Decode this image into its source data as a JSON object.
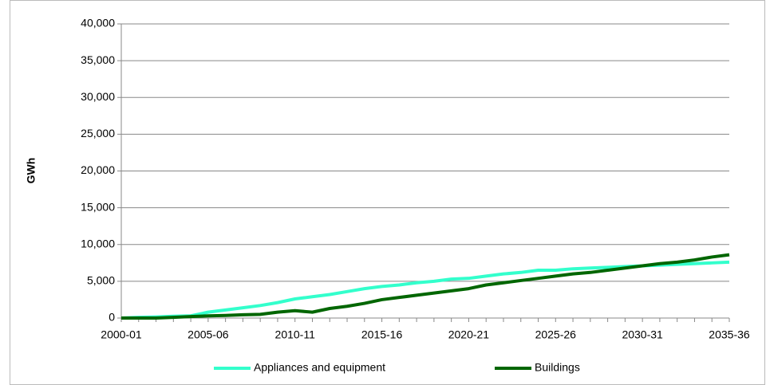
{
  "chart_data": {
    "type": "line",
    "y_label": "GWh",
    "categories": [
      "2000-01",
      null,
      null,
      null,
      null,
      "2005-06",
      null,
      null,
      null,
      null,
      "2010-11",
      null,
      null,
      null,
      null,
      "2015-16",
      null,
      null,
      null,
      null,
      "2020-21",
      null,
      null,
      null,
      null,
      "2025-26",
      null,
      null,
      null,
      null,
      "2030-31",
      null,
      null,
      null,
      null,
      "2035-36"
    ],
    "series": [
      {
        "name": "Appliances and equipment",
        "color": "#33ffcc",
        "values": [
          0,
          100,
          150,
          250,
          300,
          800,
          1100,
          1400,
          1700,
          2100,
          2600,
          2900,
          3200,
          3600,
          4000,
          4300,
          4500,
          4800,
          5000,
          5300,
          5400,
          5700,
          6000,
          6200,
          6500,
          6500,
          6700,
          6800,
          6900,
          7000,
          7100,
          7200,
          7300,
          7400,
          7500,
          7600
        ]
      },
      {
        "name": "Buildings",
        "color": "#006600",
        "values": [
          0,
          0,
          0,
          100,
          200,
          300,
          350,
          450,
          500,
          800,
          1000,
          800,
          1300,
          1600,
          2000,
          2500,
          2800,
          3100,
          3400,
          3700,
          4000,
          4500,
          4800,
          5100,
          5400,
          5700,
          6000,
          6200,
          6500,
          6800,
          7100,
          7400,
          7600,
          7900,
          8300,
          8600
        ]
      }
    ],
    "ylim": [
      0,
      40000
    ],
    "yticks": [
      0,
      {
        "value": 5000,
        "label": "5,000"
      },
      {
        "value": 10000,
        "label": "10,000"
      },
      {
        "value": 15000,
        "label": "15,000"
      },
      {
        "value": 20000,
        "label": "20,000"
      },
      {
        "value": 25000,
        "label": "25,000"
      },
      {
        "value": 30000,
        "label": "30,000"
      },
      {
        "value": 35000,
        "label": "35,000"
      },
      {
        "value": 40000,
        "label": "40,000"
      }
    ],
    "grid": true,
    "legend": "bottom"
  }
}
